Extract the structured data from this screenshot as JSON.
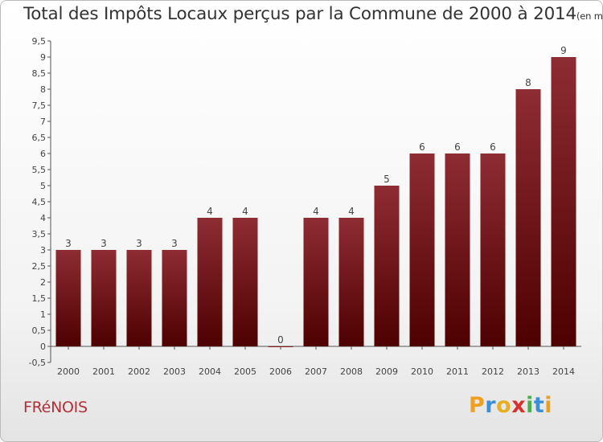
{
  "title": "Total des Impôts Locaux perçus par la Commune de 2000 à 2014",
  "subtitle": "(en milliers d'€)",
  "commune": "FRéNOIS",
  "logo": {
    "text": "Proxiti",
    "colors": [
      "#f0a020",
      "#3a8fd8",
      "#e8b020",
      "#d83030",
      "#4cae4c",
      "#3a8fd8",
      "#e8a020"
    ]
  },
  "chart_data": {
    "type": "bar",
    "categories": [
      "2000",
      "2001",
      "2002",
      "2003",
      "2004",
      "2005",
      "2006",
      "2007",
      "2008",
      "2009",
      "2010",
      "2011",
      "2012",
      "2013",
      "2014"
    ],
    "values": [
      3,
      3,
      3,
      3,
      4,
      4,
      0,
      4,
      4,
      5,
      6,
      6,
      6,
      8,
      9
    ],
    "data_labels": [
      "3",
      "3",
      "3",
      "3",
      "4",
      "4",
      "0",
      "4",
      "4",
      "5",
      "6",
      "6",
      "6",
      "8",
      "9"
    ],
    "y_ticks": [
      "-0,5",
      "0",
      "0,5",
      "1",
      "1,5",
      "2",
      "2,5",
      "3",
      "3,5",
      "4",
      "4,5",
      "5",
      "5,5",
      "6",
      "6,5",
      "7",
      "7,5",
      "8",
      "8,5",
      "9",
      "9,5"
    ],
    "ylim": [
      -0.5,
      9.5
    ],
    "bar_color": "#8b1a1a",
    "grid": false
  }
}
